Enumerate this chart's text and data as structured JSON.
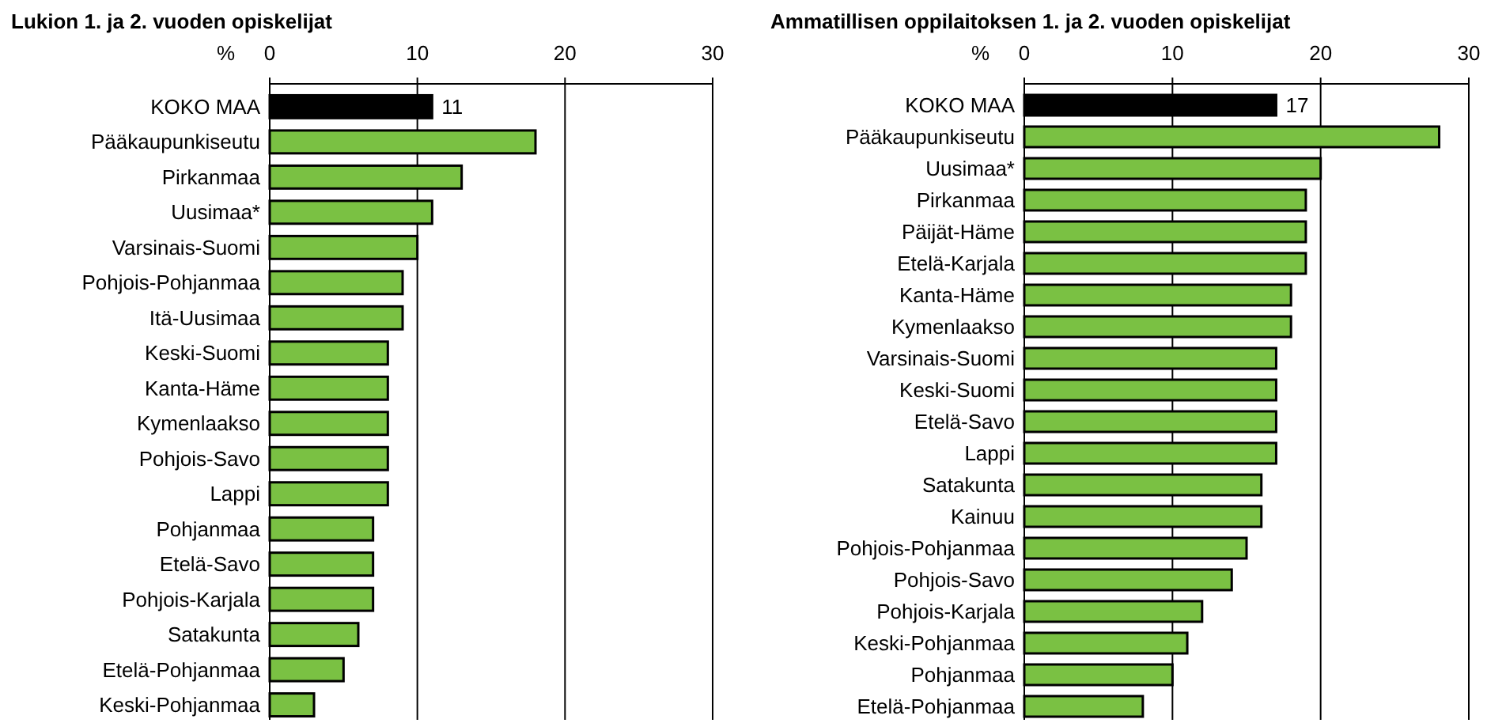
{
  "chart_data": [
    {
      "type": "bar",
      "orientation": "horizontal",
      "title": "Lukion 1. ja 2. vuoden opiskelijat",
      "xlabel": "%",
      "categories": [
        "KOKO MAA",
        "Pääkaupunkiseutu",
        "Pirkanmaa",
        "Uusimaa*",
        "Varsinais-Suomi",
        "Pohjois-Pohjanmaa",
        "Itä-Uusimaa",
        "Keski-Suomi",
        "Kanta-Häme",
        "Kymenlaakso",
        "Pohjois-Savo",
        "Lappi",
        "Pohjanmaa",
        "Etelä-Savo",
        "Pohjois-Karjala",
        "Satakunta",
        "Etelä-Pohjanmaa",
        "Keski-Pohjanmaa"
      ],
      "values": [
        11,
        18,
        13,
        11,
        10,
        9,
        9,
        8,
        8,
        8,
        8,
        8,
        7,
        7,
        7,
        6,
        5,
        3
      ],
      "colors": [
        "#000000",
        "#7ac143",
        "#7ac143",
        "#7ac143",
        "#7ac143",
        "#7ac143",
        "#7ac143",
        "#7ac143",
        "#7ac143",
        "#7ac143",
        "#7ac143",
        "#7ac143",
        "#7ac143",
        "#7ac143",
        "#7ac143",
        "#7ac143",
        "#7ac143",
        "#7ac143"
      ],
      "value_labels": [
        "11",
        null,
        null,
        null,
        null,
        null,
        null,
        null,
        null,
        null,
        null,
        null,
        null,
        null,
        null,
        null,
        null,
        null
      ],
      "xlim": [
        0,
        30
      ],
      "xticks": [
        0,
        10,
        20,
        30
      ],
      "grid": "x"
    },
    {
      "type": "bar",
      "orientation": "horizontal",
      "title": "Ammatillisen oppilaitoksen 1. ja 2. vuoden opiskelijat",
      "xlabel": "%",
      "categories": [
        "KOKO MAA",
        "Pääkaupunkiseutu",
        "Uusimaa*",
        "Pirkanmaa",
        "Päijät-Häme",
        "Etelä-Karjala",
        "Kanta-Häme",
        "Kymenlaakso",
        "Varsinais-Suomi",
        "Keski-Suomi",
        "Etelä-Savo",
        "Lappi",
        "Satakunta",
        "Kainuu",
        "Pohjois-Pohjanmaa",
        "Pohjois-Savo",
        "Pohjois-Karjala",
        "Keski-Pohjanmaa",
        "Pohjanmaa",
        "Etelä-Pohjanmaa"
      ],
      "values": [
        17,
        28,
        20,
        19,
        19,
        19,
        18,
        18,
        17,
        17,
        17,
        17,
        16,
        16,
        15,
        14,
        12,
        11,
        10,
        8
      ],
      "colors": [
        "#000000",
        "#7ac143",
        "#7ac143",
        "#7ac143",
        "#7ac143",
        "#7ac143",
        "#7ac143",
        "#7ac143",
        "#7ac143",
        "#7ac143",
        "#7ac143",
        "#7ac143",
        "#7ac143",
        "#7ac143",
        "#7ac143",
        "#7ac143",
        "#7ac143",
        "#7ac143",
        "#7ac143",
        "#7ac143"
      ],
      "value_labels": [
        "17",
        null,
        null,
        null,
        null,
        null,
        null,
        null,
        null,
        null,
        null,
        null,
        null,
        null,
        null,
        null,
        null,
        null,
        null,
        null
      ],
      "xlim": [
        0,
        30
      ],
      "xticks": [
        0,
        10,
        20,
        30
      ],
      "grid": "x"
    }
  ]
}
